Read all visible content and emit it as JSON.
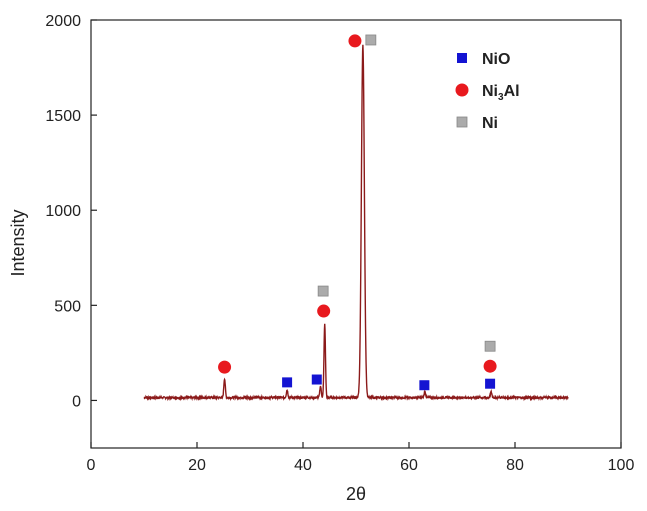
{
  "chart_data": {
    "type": "line",
    "xlabel": "2θ",
    "ylabel": "Intensity",
    "xlim": [
      0,
      100
    ],
    "ylim": [
      -250,
      2000
    ],
    "x_ticks": [
      0,
      20,
      40,
      60,
      80,
      100
    ],
    "y_ticks": [
      0,
      500,
      1000,
      1500,
      2000
    ],
    "grid": false,
    "line_color": "#8b1a1a",
    "baseline": 15,
    "x_range": [
      10,
      90
    ],
    "peaks": [
      {
        "x": 25.2,
        "y": 100
      },
      {
        "x": 37.0,
        "y": 40
      },
      {
        "x": 43.3,
        "y": 60
      },
      {
        "x": 44.1,
        "y": 385
      },
      {
        "x": 51.3,
        "y": 1850
      },
      {
        "x": 63.0,
        "y": 30
      },
      {
        "x": 75.5,
        "y": 30
      }
    ],
    "markers": [
      {
        "phase": "Ni3Al",
        "x": 25.2,
        "y": 175
      },
      {
        "phase": "NiO",
        "x": 37.0,
        "y": 95
      },
      {
        "phase": "NiO",
        "x": 42.6,
        "y": 110
      },
      {
        "phase": "Ni",
        "x": 43.8,
        "y": 575
      },
      {
        "phase": "Ni3Al",
        "x": 43.9,
        "y": 470
      },
      {
        "phase": "Ni3Al",
        "x": 49.8,
        "y": 1890
      },
      {
        "phase": "Ni",
        "x": 52.8,
        "y": 1895
      },
      {
        "phase": "NiO",
        "x": 62.9,
        "y": 80
      },
      {
        "phase": "Ni",
        "x": 75.3,
        "y": 285
      },
      {
        "phase": "Ni3Al",
        "x": 75.3,
        "y": 180
      },
      {
        "phase": "NiO",
        "x": 75.3,
        "y": 88
      }
    ],
    "legend": {
      "placement": "top-right",
      "entries": [
        {
          "phase": "NiO",
          "label_main": "NiO",
          "label_sub": "",
          "label_tail": "",
          "shape": "square",
          "color": "#1414d2"
        },
        {
          "phase": "Ni3Al",
          "label_main": "Ni",
          "label_sub": "3",
          "label_tail": "Al",
          "shape": "circle",
          "color": "#e8191e"
        },
        {
          "phase": "Ni",
          "label_main": "Ni",
          "label_sub": "",
          "label_tail": "",
          "shape": "square",
          "color": "#ababab"
        }
      ]
    }
  }
}
